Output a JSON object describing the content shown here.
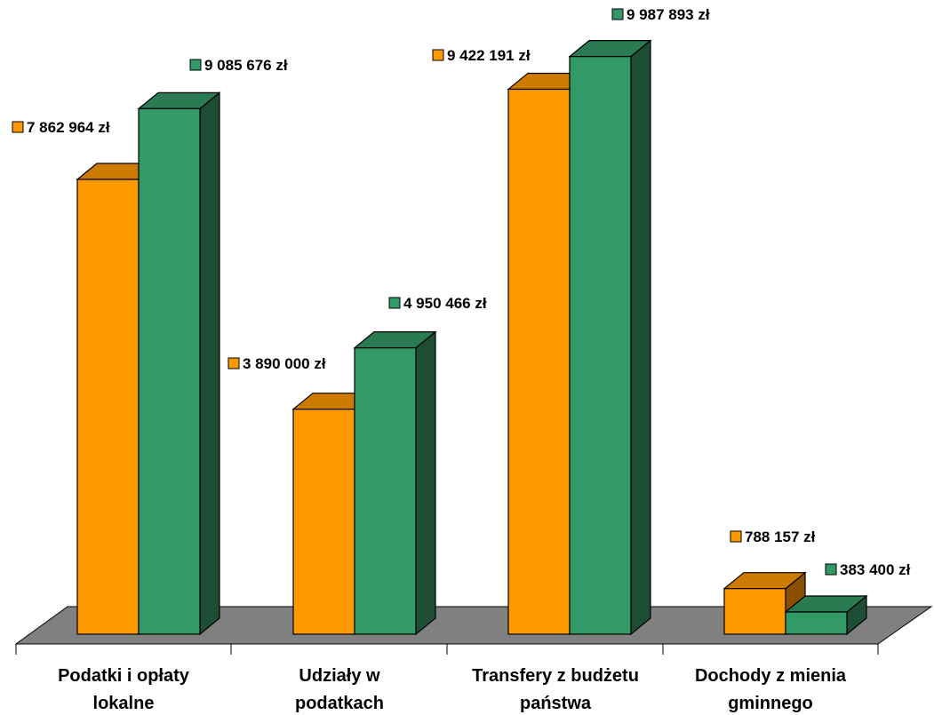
{
  "chart_data": {
    "type": "bar",
    "three_d": true,
    "categories": [
      [
        "Podatki i opłaty",
        "lokalne"
      ],
      [
        "Udziały w",
        "podatkach"
      ],
      [
        "Transfery z budżetu",
        "państwa"
      ],
      [
        "Dochody z mienia",
        "gminnego"
      ]
    ],
    "series": [
      {
        "values": [
          7862964,
          3890000,
          9422191,
          788157
        ],
        "labels": [
          "7 862 964 zł",
          "3 890 000 zł",
          "9 422 191 zł",
          "788 157 zł"
        ],
        "color": "#ff9900",
        "top_color": "#cc7a00",
        "side_color": "#8a5000"
      },
      {
        "values": [
          9085676,
          4950466,
          9987893,
          383400
        ],
        "labels": [
          "9 085 676 zł",
          "4 950 466 zł",
          "9 987 893 zł",
          "383 400 zł"
        ],
        "color": "#339966",
        "top_color": "#2a7a52",
        "side_color": "#1e4d36"
      }
    ],
    "floor_color": "#808080",
    "legend": "none",
    "grid": false
  }
}
